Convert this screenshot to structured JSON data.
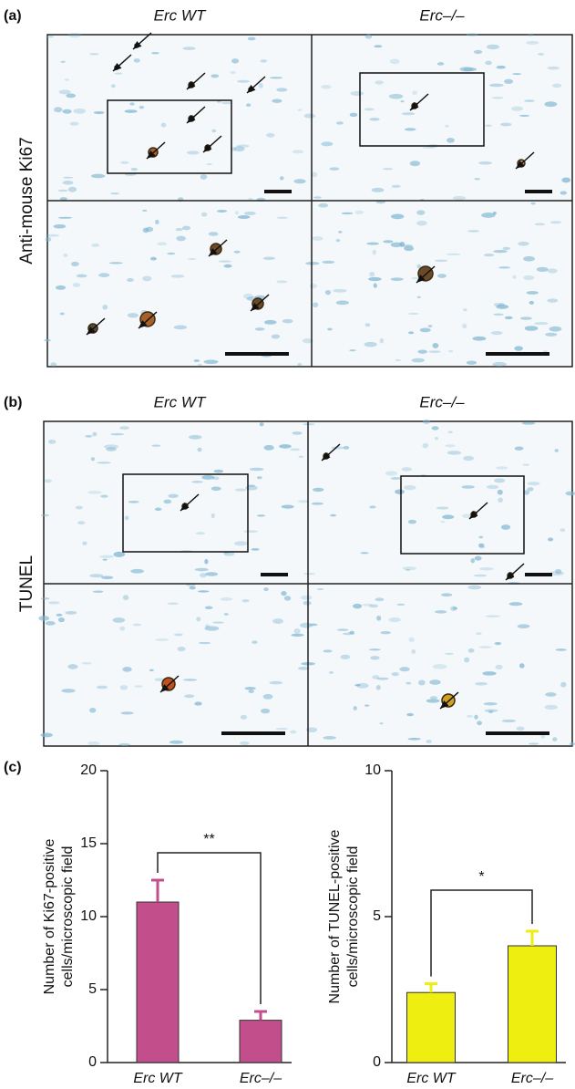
{
  "panel_a": {
    "label": "(a)",
    "columns": [
      "Erc WT",
      "Erc–/–"
    ],
    "row_label": "Anti-mouse Ki67"
  },
  "panel_b": {
    "label": "(b)",
    "columns": [
      "Erc WT",
      "Erc–/–"
    ],
    "row_label": "TUNEL"
  },
  "panel_c": {
    "label": "(c)"
  },
  "chart_data": [
    {
      "type": "bar",
      "categories": [
        "Erc WT",
        "Erc–/–"
      ],
      "values": [
        11,
        2.9
      ],
      "errors": [
        1.5,
        0.6
      ],
      "color": "#c24f8c",
      "ylabel": [
        "Number of Ki67-positive",
        "cells/microscopic field"
      ],
      "ylim": [
        0,
        20
      ],
      "yticks": [
        0,
        5,
        10,
        15,
        20
      ],
      "annotation": "**"
    },
    {
      "type": "bar",
      "categories": [
        "Erc WT",
        "Erc–/–"
      ],
      "values": [
        2.4,
        4.0
      ],
      "errors": [
        0.3,
        0.5
      ],
      "color": "#eeee10",
      "ylabel": [
        "Number of TUNEL-positive",
        "cells/microscopic field"
      ],
      "ylim": [
        0,
        10
      ],
      "yticks": [
        0,
        5,
        10
      ],
      "annotation": "*"
    }
  ]
}
